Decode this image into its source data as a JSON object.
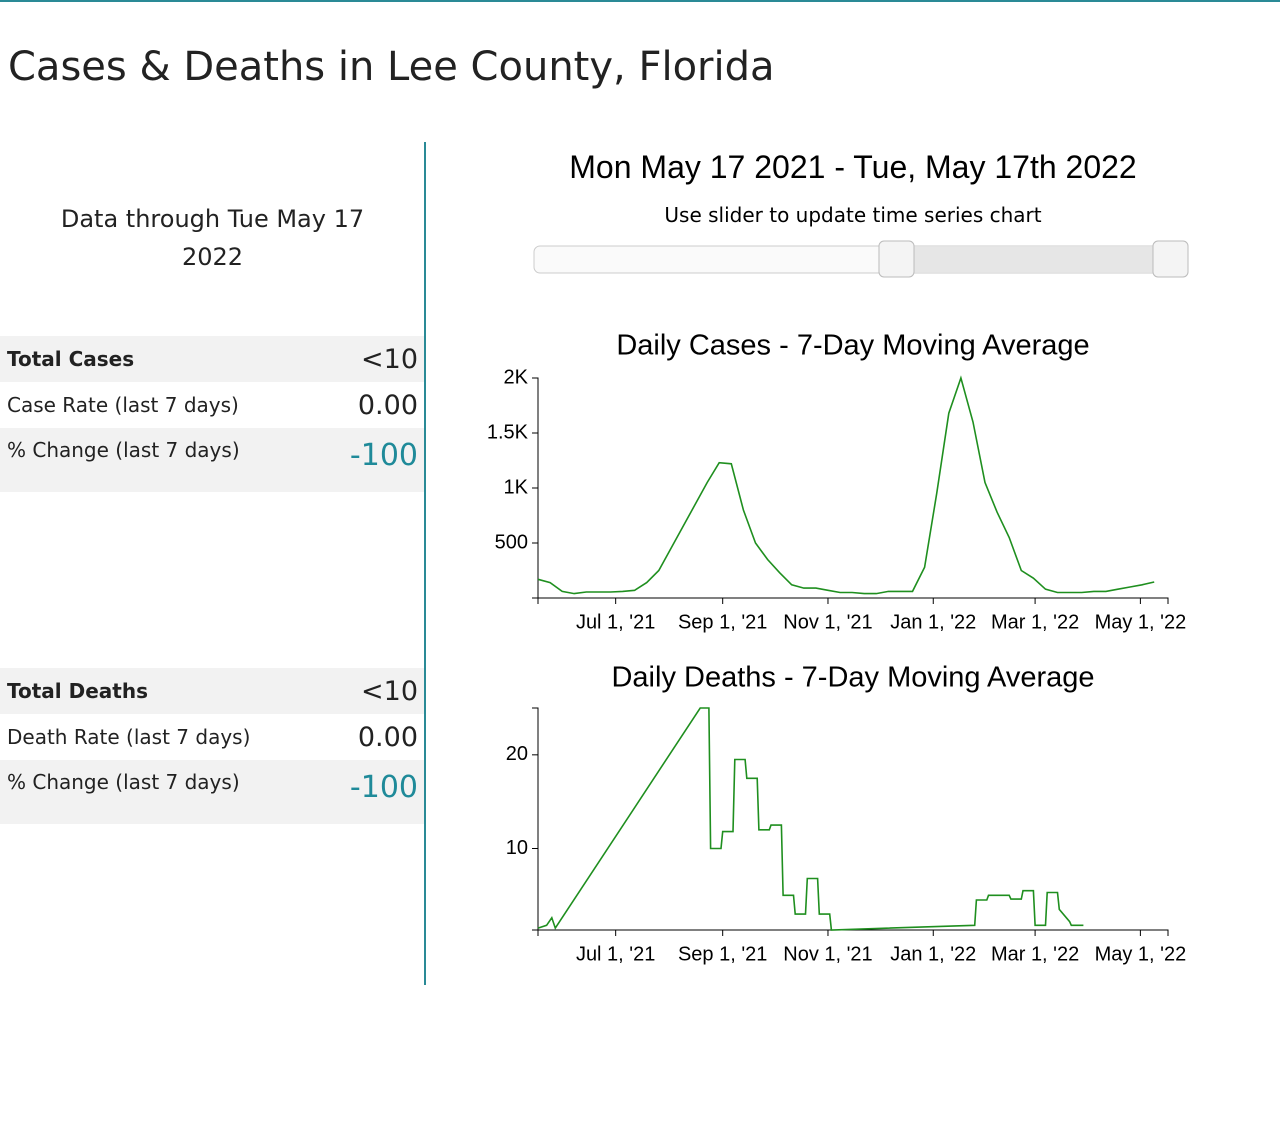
{
  "header": {
    "title": "Cases & Deaths in Lee County, Florida"
  },
  "summary": {
    "data_through": "Data through Tue May 17 2022"
  },
  "cases_table": {
    "rows": [
      [
        "Total Cases",
        "<10"
      ],
      [
        "Case Rate (last 7 days)",
        "0.00"
      ],
      [
        "% Change (last 7 days)",
        "-100"
      ]
    ]
  },
  "deaths_table": {
    "rows": [
      [
        "Total Deaths",
        "<10"
      ],
      [
        "Death Rate (last 7 days)",
        "0.00"
      ],
      [
        "% Change (last 7 days)",
        "-100"
      ]
    ]
  },
  "time_range": {
    "title": "Mon May 17 2021 - Tue, May 17th 2022",
    "hint": "Use slider to update time series chart"
  },
  "chart_data": [
    {
      "type": "line",
      "title": "Daily Cases - 7-Day Moving Average",
      "color": "#1f8f1f",
      "x": [
        "2021-05-17",
        "2021-05-24",
        "2021-05-31",
        "2021-06-07",
        "2021-06-14",
        "2021-06-21",
        "2021-06-28",
        "2021-07-05",
        "2021-07-12",
        "2021-07-19",
        "2021-07-26",
        "2021-08-02",
        "2021-08-09",
        "2021-08-16",
        "2021-08-23",
        "2021-08-30",
        "2021-09-06",
        "2021-09-13",
        "2021-09-20",
        "2021-09-27",
        "2021-10-04",
        "2021-10-11",
        "2021-10-18",
        "2021-10-25",
        "2021-11-01",
        "2021-11-08",
        "2021-11-15",
        "2021-11-22",
        "2021-11-29",
        "2021-12-06",
        "2021-12-13",
        "2021-12-20",
        "2021-12-27",
        "2022-01-03",
        "2022-01-10",
        "2022-01-17",
        "2022-01-24",
        "2022-01-31",
        "2022-02-07",
        "2022-02-14",
        "2022-02-21",
        "2022-02-28",
        "2022-03-07",
        "2022-03-14",
        "2022-03-21",
        "2022-03-28",
        "2022-04-04",
        "2022-04-11",
        "2022-04-18",
        "2022-04-25",
        "2022-05-02",
        "2022-05-09"
      ],
      "values": [
        170,
        140,
        60,
        40,
        55,
        55,
        55,
        60,
        70,
        140,
        250,
        450,
        650,
        850,
        1050,
        1230,
        1220,
        800,
        500,
        350,
        230,
        120,
        90,
        90,
        70,
        50,
        50,
        40,
        40,
        60,
        60,
        60,
        280,
        950,
        1680,
        2000,
        1600,
        1050,
        780,
        550,
        250,
        180,
        80,
        50,
        50,
        50,
        60,
        60,
        80,
        100,
        120,
        145
      ],
      "xlim": [
        "2021-05-17",
        "2022-05-17"
      ],
      "xticks": [
        {
          "value": "2021-07-01",
          "label": "Jul 1, '21"
        },
        {
          "value": "2021-09-01",
          "label": "Sep 1, '21"
        },
        {
          "value": "2021-11-01",
          "label": "Nov 1, '21"
        },
        {
          "value": "2022-01-01",
          "label": "Jan 1, '22"
        },
        {
          "value": "2022-03-01",
          "label": "Mar 1, '22"
        },
        {
          "value": "2022-05-01",
          "label": "May 1, '22"
        }
      ],
      "ylim": [
        0,
        2000
      ],
      "yticks": [
        500,
        {
          "value": 1000,
          "label": "1K"
        },
        {
          "value": 1500,
          "label": "1.5K"
        },
        {
          "value": 2000,
          "label": "2K"
        }
      ]
    },
    {
      "type": "line",
      "title": "Daily Deaths - 7-Day Moving Average",
      "color": "#1f8f1f",
      "x": [
        "2021-05-17",
        "2021-05-22",
        "2021-05-25",
        "2021-05-27",
        "2021-08-19",
        "2021-08-24",
        "2021-08-25",
        "2021-08-31",
        "2021-09-01",
        "2021-09-07",
        "2021-09-08",
        "2021-09-14",
        "2021-09-15",
        "2021-09-21",
        "2021-09-22",
        "2021-09-28",
        "2021-09-29",
        "2021-10-05",
        "2021-10-06",
        "2021-10-12",
        "2021-10-13",
        "2021-10-19",
        "2021-10-20",
        "2021-10-26",
        "2021-10-27",
        "2021-11-02",
        "2021-11-03",
        "2022-01-25",
        "2022-01-26",
        "2022-02-01",
        "2022-02-02",
        "2022-02-14",
        "2022-02-15",
        "2022-02-21",
        "2022-02-22",
        "2022-02-28",
        "2022-03-01",
        "2022-03-07",
        "2022-03-08",
        "2022-03-14",
        "2022-03-15",
        "2022-03-21",
        "2022-03-22",
        "2022-03-29"
      ],
      "values": [
        1.5,
        1.8,
        2.6,
        1.5,
        25,
        25,
        10,
        10,
        11.8,
        11.8,
        19.5,
        19.5,
        17.5,
        17.5,
        12,
        12,
        12.5,
        12.5,
        5,
        5,
        3,
        3,
        6.8,
        6.8,
        3,
        3,
        1.3,
        1.8,
        4.5,
        4.5,
        5,
        5,
        4.6,
        4.6,
        5.5,
        5.5,
        1.8,
        1.8,
        5.3,
        5.3,
        3.5,
        2.2,
        1.8,
        1.8
      ],
      "xlim": [
        "2021-05-17",
        "2022-05-17"
      ],
      "xticks": [
        {
          "value": "2021-07-01",
          "label": "Jul 1, '21"
        },
        {
          "value": "2021-09-01",
          "label": "Sep 1, '21"
        },
        {
          "value": "2021-11-01",
          "label": "Nov 1, '21"
        },
        {
          "value": "2022-01-01",
          "label": "Jan 1, '22"
        },
        {
          "value": "2022-03-01",
          "label": "Mar 1, '22"
        },
        {
          "value": "2022-05-01",
          "label": "May 1, '22"
        }
      ],
      "ylim": [
        1.3,
        25
      ],
      "yticks": [
        10,
        20
      ]
    }
  ]
}
